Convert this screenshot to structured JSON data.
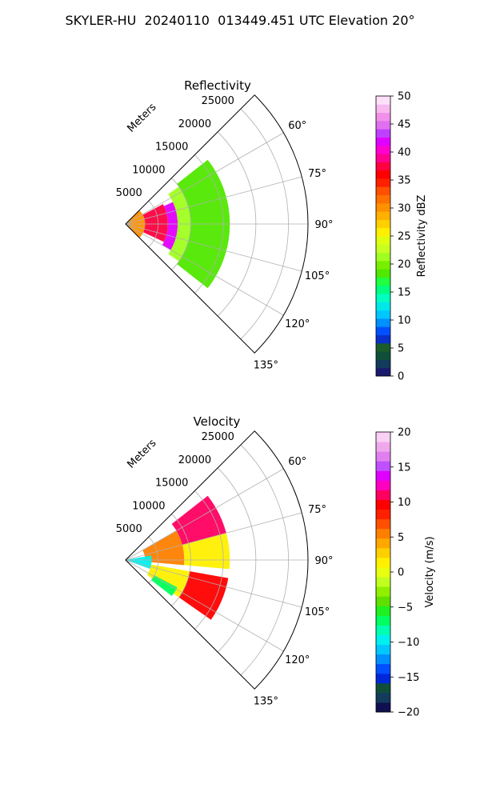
{
  "figure_title": "SKYLER-HU  20240110  013449.451 UTC Elevation 20°",
  "chart_data": [
    {
      "type": "heatmap",
      "subtype": "polar-sector-ppi",
      "title": "Reflectivity",
      "radial_label": "Meters",
      "r_ticks": [
        5000,
        10000,
        15000,
        20000,
        25000
      ],
      "r_tick_labels": [
        "5000",
        "10000",
        "15000",
        "20000",
        "25000"
      ],
      "rlim": [
        0,
        28000
      ],
      "theta_ticks_deg": [
        60,
        75,
        90,
        105,
        120,
        135
      ],
      "theta_tick_labels": [
        "60°",
        "75°",
        "90°",
        "105°",
        "120°",
        "135°"
      ],
      "sector_deg": [
        45,
        135
      ],
      "grid": true,
      "data_extent_m": 16000,
      "colorbar": {
        "label": "Reflectivity dBZ",
        "range": [
          0,
          50
        ],
        "ticks": [
          0,
          5,
          10,
          15,
          20,
          25,
          30,
          35,
          40,
          45,
          50
        ],
        "tick_labels": [
          "0",
          "5",
          "10",
          "15",
          "20",
          "25",
          "30",
          "35",
          "40",
          "45",
          "50"
        ]
      },
      "regions": [
        {
          "r": [
            0,
            3000
          ],
          "theta": [
            45,
            135
          ],
          "value": 30
        },
        {
          "r": [
            3000,
            6500
          ],
          "theta": [
            62,
            115
          ],
          "value": 37
        },
        {
          "r": [
            6500,
            8000
          ],
          "theta": [
            65,
            120
          ],
          "value": 42
        },
        {
          "r": [
            8000,
            10000
          ],
          "theta": [
            55,
            125
          ],
          "value": 22
        },
        {
          "r": [
            10000,
            16000
          ],
          "theta": [
            52,
            128
          ],
          "value": 18
        }
      ]
    },
    {
      "type": "heatmap",
      "subtype": "polar-sector-ppi",
      "title": "Velocity",
      "radial_label": "Meters",
      "r_ticks": [
        5000,
        10000,
        15000,
        20000,
        25000
      ],
      "r_tick_labels": [
        "5000",
        "10000",
        "15000",
        "20000",
        "25000"
      ],
      "rlim": [
        0,
        28000
      ],
      "theta_ticks_deg": [
        60,
        75,
        90,
        105,
        120,
        135
      ],
      "theta_tick_labels": [
        "60°",
        "75°",
        "90°",
        "105°",
        "120°",
        "135°"
      ],
      "sector_deg": [
        45,
        135
      ],
      "grid": true,
      "data_extent_m": 16000,
      "colorbar": {
        "label": "Velocity (m/s)",
        "range": [
          -20,
          20
        ],
        "ticks": [
          -20,
          -15,
          -10,
          -5,
          0,
          5,
          10,
          15,
          20
        ],
        "tick_labels": [
          "−20",
          "−15",
          "−10",
          "−5",
          "0",
          "5",
          "10",
          "15",
          "20"
        ]
      },
      "regions": [
        {
          "r": [
            9000,
            16000
          ],
          "theta": [
            52,
            75
          ],
          "value": 11
        },
        {
          "r": [
            9000,
            16000
          ],
          "theta": [
            75,
            95
          ],
          "value": 1
        },
        {
          "r": [
            3000,
            9000
          ],
          "theta": [
            60,
            95
          ],
          "value": 6
        },
        {
          "r": [
            0,
            4000
          ],
          "theta": [
            80,
            110
          ],
          "value": -10
        },
        {
          "r": [
            4000,
            10000
          ],
          "theta": [
            100,
            125
          ],
          "value": 2
        },
        {
          "r": [
            10000,
            16000
          ],
          "theta": [
            100,
            125
          ],
          "value": 9
        },
        {
          "r": [
            5000,
            9000
          ],
          "theta": [
            118,
            128
          ],
          "value": -7
        }
      ]
    }
  ],
  "colors": {
    "refl_scale": [
      "#1a1a6e",
      "#123b5c",
      "#0f4f3a",
      "#1a5c2a",
      "#0a30c8",
      "#0050ff",
      "#0090ff",
      "#00c8ff",
      "#00e8e8",
      "#00ffc0",
      "#00ff80",
      "#20ff40",
      "#50e800",
      "#78ee00",
      "#a0ff20",
      "#c8ff20",
      "#e0ff10",
      "#fff000",
      "#ffd000",
      "#ffb000",
      "#ff9000",
      "#ff7000",
      "#ff5000",
      "#ff2000",
      "#ff0000",
      "#ff0040",
      "#ff0090",
      "#ff00d0",
      "#e000ff",
      "#c040ff",
      "#e070f0",
      "#f090e8",
      "#f8b8f0",
      "#fde0f8"
    ],
    "vel_scale": [
      "#101050",
      "#123b5c",
      "#0f4f3a",
      "#0028d8",
      "#0050ff",
      "#0090ff",
      "#00c8ff",
      "#00f0f0",
      "#00ffb0",
      "#00ff60",
      "#20f020",
      "#60e000",
      "#90f000",
      "#c0ff20",
      "#e8ff10",
      "#fff000",
      "#ffd000",
      "#ffa800",
      "#ff8000",
      "#ff5000",
      "#ff2000",
      "#ff0000",
      "#ff0060",
      "#ff00c0",
      "#e000ff",
      "#c050ff",
      "#e080f0",
      "#f0a8ec",
      "#fad0f4"
    ]
  }
}
